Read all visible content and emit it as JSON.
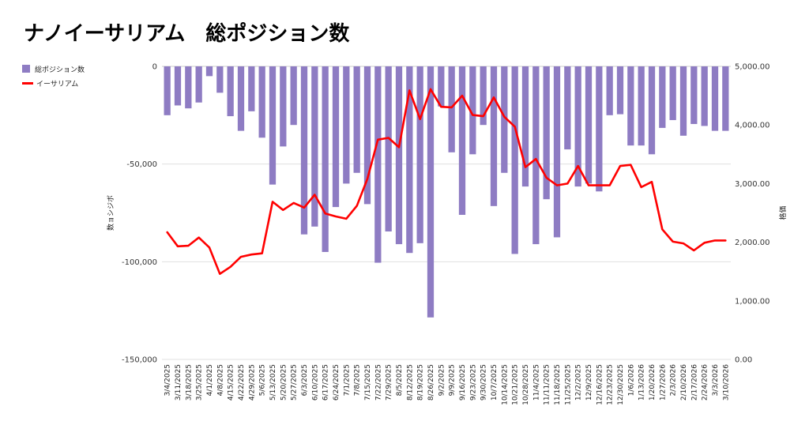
{
  "chart_data": {
    "type": "bar+line",
    "title": "ナノイーサリアム　総ポジション数",
    "legend": [
      {
        "name": "総ポジション数",
        "color": "#8e7cc3",
        "kind": "bar"
      },
      {
        "name": "イーサリアム",
        "color": "#ff0000",
        "kind": "line"
      }
    ],
    "left_axis": {
      "title": "数ョシジボ",
      "range": [
        -150000,
        0
      ],
      "ticks": [
        0,
        -50000,
        -100000,
        -150000
      ],
      "tick_labels": [
        "0",
        "-50,000",
        "-100,000",
        "-150,000"
      ]
    },
    "right_axis": {
      "title": "格価",
      "range": [
        0,
        5000
      ],
      "ticks": [
        5000,
        4000,
        3000,
        2000,
        1000,
        0
      ],
      "tick_labels": [
        "5,000.00",
        "4,000.00",
        "3,000.00",
        "2,000.00",
        "1,000.00",
        "0.00"
      ]
    },
    "x_labels": [
      "3/4/2025",
      "3/11/2025",
      "3/18/2025",
      "3/25/2025",
      "4/1/2025",
      "4/8/2025",
      "4/15/2025",
      "4/22/2025",
      "4/29/2025",
      "5/6/2025",
      "5/13/2025",
      "5/20/2025",
      "5/27/2025",
      "6/3/2025",
      "6/10/2025",
      "6/17/2025",
      "6/24/2025",
      "7/1/2025",
      "7/8/2025",
      "7/15/2025",
      "7/22/2025",
      "7/29/2025",
      "8/5/2025",
      "8/12/2025",
      "8/19/2025",
      "8/26/2025",
      "9/2/2025",
      "9/9/2025",
      "9/16/2025",
      "9/23/2025",
      "9/30/2025",
      "10/7/2025",
      "10/14/2025",
      "10/21/2025",
      "10/28/2025",
      "11/4/2025",
      "11/11/2025",
      "11/18/2025",
      "11/25/2025",
      "12/2/2025",
      "12/9/2025",
      "12/16/2025",
      "12/23/2025",
      "12/30/2025",
      "1/6/2026",
      "1/13/2026",
      "1/20/2026",
      "1/27/2026",
      "2/3/2026",
      "2/10/2026",
      "2/17/2026",
      "2/24/2026",
      "3/3/2026",
      "3/10/2026"
    ],
    "series": [
      {
        "name": "総ポジション数",
        "axis": "left",
        "values": [
          -25000,
          -20000,
          -21500,
          -18500,
          -5000,
          -13500,
          -25500,
          -33000,
          -23000,
          -36500,
          -60500,
          -41000,
          -30000,
          -86000,
          -82000,
          -95000,
          -72000,
          -60000,
          -54500,
          -70500,
          -100500,
          -84500,
          -91000,
          -95500,
          -90500,
          -128500,
          -20500,
          -44000,
          -76000,
          -45000,
          -30000,
          -71500,
          -54500,
          -96000,
          -61500,
          -91000,
          -68000,
          -87500,
          -42500,
          -61500,
          -60000,
          -64000,
          -25000,
          -24500,
          -40500,
          -40500,
          -45000,
          -31500,
          -27500,
          -35500,
          -29500,
          -30500,
          -33000,
          -33000
        ]
      },
      {
        "name": "イーサリアム",
        "axis": "right",
        "values": [
          2170,
          1930,
          1940,
          2080,
          1910,
          1460,
          1580,
          1750,
          1790,
          1810,
          2690,
          2550,
          2670,
          2590,
          2810,
          2490,
          2440,
          2400,
          2620,
          3080,
          3750,
          3780,
          3620,
          4590,
          4100,
          4610,
          4310,
          4300,
          4500,
          4170,
          4150,
          4470,
          4140,
          3970,
          3280,
          3420,
          3100,
          2970,
          3000,
          3300,
          2970,
          2970,
          2970,
          3300,
          3320,
          2940,
          3030,
          2220,
          2010,
          1980,
          1860,
          1990,
          2030,
          2030
        ]
      }
    ]
  }
}
